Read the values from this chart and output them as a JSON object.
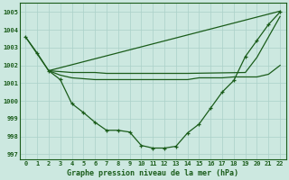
{
  "xlabel": "Graphe pression niveau de la mer (hPa)",
  "background_color": "#cce8e0",
  "grid_color": "#aad0c8",
  "line_color": "#1a5c1a",
  "xlim": [
    -0.5,
    22.5
  ],
  "ylim": [
    996.7,
    1005.5
  ],
  "yticks": [
    997,
    998,
    999,
    1000,
    1001,
    1002,
    1003,
    1004,
    1005
  ],
  "xticks": [
    0,
    1,
    2,
    3,
    4,
    5,
    6,
    7,
    8,
    9,
    10,
    11,
    12,
    13,
    14,
    15,
    16,
    17,
    18,
    19,
    20,
    21,
    22
  ],
  "line1_x": [
    0,
    1,
    2,
    3,
    4,
    5,
    6,
    7,
    8,
    9,
    10,
    11,
    12,
    13,
    14,
    15,
    16,
    17,
    18,
    19,
    20,
    21,
    22
  ],
  "line1_y": [
    1003.6,
    1002.7,
    1001.7,
    1001.2,
    999.85,
    999.35,
    998.8,
    998.35,
    998.35,
    998.25,
    997.5,
    997.35,
    997.35,
    997.45,
    998.2,
    998.7,
    999.6,
    1000.5,
    1001.15,
    1002.5,
    1003.4,
    1004.3,
    1005.0
  ],
  "line2_x": [
    0,
    2,
    22
  ],
  "line2_y": [
    1003.6,
    1001.7,
    1005.05
  ],
  "line3_x": [
    2,
    3,
    4,
    5,
    6,
    7,
    8,
    9,
    10,
    11,
    12,
    13,
    14,
    19,
    20,
    21,
    22
  ],
  "line3_y": [
    1001.7,
    1001.65,
    1001.6,
    1001.6,
    1001.6,
    1001.55,
    1001.55,
    1001.55,
    1001.55,
    1001.55,
    1001.55,
    1001.55,
    1001.55,
    1001.6,
    1002.45,
    1003.6,
    1004.75
  ],
  "line4_x": [
    2,
    3,
    4,
    5,
    6,
    7,
    8,
    9,
    10,
    11,
    12,
    13,
    14,
    15,
    16,
    17,
    18,
    19,
    20,
    21,
    22
  ],
  "line4_y": [
    1001.7,
    1001.45,
    1001.3,
    1001.25,
    1001.2,
    1001.2,
    1001.2,
    1001.2,
    1001.2,
    1001.2,
    1001.2,
    1001.2,
    1001.2,
    1001.3,
    1001.3,
    1001.3,
    1001.35,
    1001.35,
    1001.35,
    1001.5,
    1002.0
  ]
}
